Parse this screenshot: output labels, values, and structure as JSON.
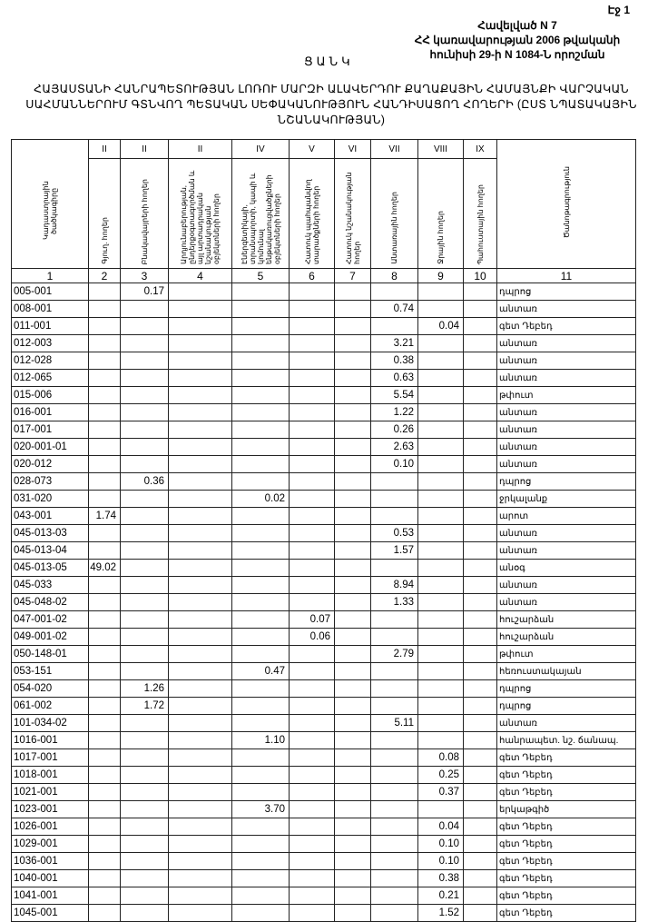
{
  "page_label": "Էջ 1",
  "annex": [
    "Հավելված N 7",
    "ՀՀ կառավարության 2006 թվականի",
    "հունիսի 29-ի N 1084-Ն որոշման"
  ],
  "list_title": "ՑԱՆԿ",
  "title": "ՀԱՅԱՍՏԱՆԻ ՀԱՆՐԱՊԵՏՈՒԹՅԱՆ ԼՈՌՈՒ ՄԱՐԶԻ ԱԼԱՎԵՐԴՈՒ ՔԱՂԱՔԱՅԻՆ ՀԱՄԱՅՆՔԻ ՎԱՐՉԱԿԱՆ ՍԱՀՄԱՆՆԵՐՈՒՄ ԳՏՆՎՈՂ ՊԵՏԱԿԱՆ ՍԵՓԱԿԱՆՈՒԹՅՈՒՆ ՀԱՆԴԻՍԱՑՈՂ ՀՈՂԵՐԻ (ԸՍՏ ՆՊԱՏԱԿԱՅԻՆ ՆՇԱՆԱԿՈՒԹՅԱՆ)",
  "table": {
    "roman": [
      "II",
      "II",
      "II",
      "IV",
      "V",
      "VI",
      "VII",
      "VIII",
      "IX"
    ],
    "headers": [
      "Կադաստրային ծածկագիրը",
      "Գյուղ. հողեր",
      "Բնակավայրերի հողեր",
      "Արդյունաբերության, ընդերքօգտագործման և այլ արտադրական նշանակության օբյեկտների հողեր",
      "Էներգետիկայի, տրանսպորտի, կապի և կոմունալ ենթակառուցվածքների օբյեկտների հողեր",
      "Հատուկ պահպանվող տարածքների հողեր",
      "Հատուկ նշանակության հողեր",
      "Անտառային հողեր",
      "Ջրային հողեր",
      "Պահուստային հողեր",
      "Ծանոթագրություն"
    ],
    "numbers": [
      "1",
      "2",
      "3",
      "4",
      "5",
      "6",
      "7",
      "8",
      "9",
      "10",
      "11"
    ],
    "rows": [
      {
        "code": "005-001",
        "c": 3,
        "v": "0.17",
        "note": "դպրոց"
      },
      {
        "code": "008-001",
        "c": 8,
        "v": "0.74",
        "note": "անտառ"
      },
      {
        "code": "011-001",
        "c": 9,
        "v": "0.04",
        "note": "գետ Դեբեդ"
      },
      {
        "code": "012-003",
        "c": 8,
        "v": "3.21",
        "note": "անտառ"
      },
      {
        "code": "012-028",
        "c": 8,
        "v": "0.38",
        "note": "անտառ"
      },
      {
        "code": "012-065",
        "c": 8,
        "v": "0.63",
        "note": "անտառ"
      },
      {
        "code": "015-006",
        "c": 8,
        "v": "5.54",
        "note": "թփուտ"
      },
      {
        "code": "016-001",
        "c": 8,
        "v": "1.22",
        "note": "անտառ"
      },
      {
        "code": "017-001",
        "c": 8,
        "v": "0.26",
        "note": "անտառ"
      },
      {
        "code": "020-001-01",
        "c": 8,
        "v": "2.63",
        "note": "անտառ"
      },
      {
        "code": "020-012",
        "c": 8,
        "v": "0.10",
        "note": "անտառ"
      },
      {
        "code": "028-073",
        "c": 3,
        "v": "0.36",
        "note": "դպրոց"
      },
      {
        "code": "031-020",
        "c": 5,
        "v": "0.02",
        "note": "ջրկալանք"
      },
      {
        "code": "043-001",
        "c": 2,
        "v": "1.74",
        "note": "արոտ"
      },
      {
        "code": "045-013-03",
        "c": 8,
        "v": "0.53",
        "note": "անտառ"
      },
      {
        "code": "045-013-04",
        "c": 8,
        "v": "1.57",
        "note": "անտառ"
      },
      {
        "code": "045-013-05",
        "c": 2,
        "v": "49.02",
        "note": "անօգ"
      },
      {
        "code": "045-033",
        "c": 8,
        "v": "8.94",
        "note": "անտառ"
      },
      {
        "code": "045-048-02",
        "c": 8,
        "v": "1.33",
        "note": "անտառ"
      },
      {
        "code": "047-001-02",
        "c": 6,
        "v": "0.07",
        "note": "հուշարձան"
      },
      {
        "code": "049-001-02",
        "c": 6,
        "v": "0.06",
        "note": "հուշարձան"
      },
      {
        "code": "050-148-01",
        "c": 8,
        "v": "2.79",
        "note": "թփուտ"
      },
      {
        "code": "053-151",
        "c": 5,
        "v": "0.47",
        "note": "հեռուստակայան"
      },
      {
        "code": "054-020",
        "c": 3,
        "v": "1.26",
        "note": "դպրոց"
      },
      {
        "code": "061-002",
        "c": 3,
        "v": "1.72",
        "note": "դպրոց"
      },
      {
        "code": "101-034-02",
        "c": 8,
        "v": "5.11",
        "note": "անտառ"
      },
      {
        "code": "1016-001",
        "c": 5,
        "v": "1.10",
        "note": "հանրապետ. նշ. ճանապ."
      },
      {
        "code": "1017-001",
        "c": 9,
        "v": "0.08",
        "note": "գետ Դեբեդ"
      },
      {
        "code": "1018-001",
        "c": 9,
        "v": "0.25",
        "note": "գետ Դեբեդ"
      },
      {
        "code": "1021-001",
        "c": 9,
        "v": "0.37",
        "note": "գետ Դեբեդ"
      },
      {
        "code": "1023-001",
        "c": 5,
        "v": "3.70",
        "note": "երկաթգիծ"
      },
      {
        "code": "1026-001",
        "c": 9,
        "v": "0.04",
        "note": "գետ Դեբեդ"
      },
      {
        "code": "1029-001",
        "c": 9,
        "v": "0.10",
        "note": "գետ Դեբեդ"
      },
      {
        "code": "1036-001",
        "c": 9,
        "v": "0.10",
        "note": "գետ Դեբեդ"
      },
      {
        "code": "1040-001",
        "c": 9,
        "v": "0.38",
        "note": "գետ Դեբեդ"
      },
      {
        "code": "1041-001",
        "c": 9,
        "v": "0.21",
        "note": "գետ Դեբեդ"
      },
      {
        "code": "1045-001",
        "c": 9,
        "v": "1.52",
        "note": "գետ Դեբեդ"
      }
    ]
  }
}
